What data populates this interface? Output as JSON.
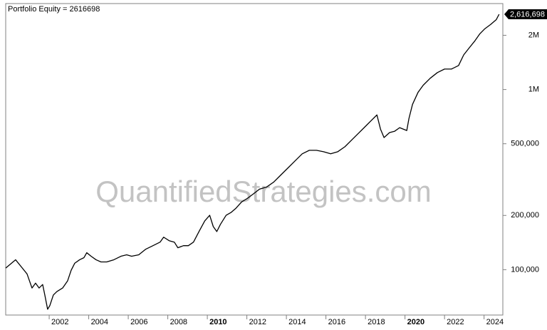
{
  "chart_data": {
    "type": "line",
    "title": "Portfolio Equity = 2616698",
    "watermark": "QuantifiedStrategies.com",
    "log_scale": true,
    "x": [
      1999.8,
      2000.3,
      2000.59,
      2000.88,
      2001.13,
      2001.31,
      2001.49,
      2001.67,
      2001.78,
      2001.92,
      2002.03,
      2002.21,
      2002.39,
      2002.68,
      2002.93,
      2003.11,
      2003.29,
      2003.54,
      2003.76,
      2003.9,
      2004.12,
      2004.37,
      2004.62,
      2004.91,
      2005.27,
      2005.63,
      2005.92,
      2006.17,
      2006.53,
      2006.89,
      2007.25,
      2007.61,
      2007.79,
      2008.07,
      2008.33,
      2008.51,
      2008.79,
      2009.04,
      2009.3,
      2009.58,
      2009.87,
      2010.12,
      2010.3,
      2010.48,
      2010.66,
      2010.95,
      2011.2,
      2011.45,
      2011.74,
      2012.03,
      2012.32,
      2012.64,
      2013.0,
      2013.36,
      2013.72,
      2014.08,
      2014.44,
      2014.8,
      2015.16,
      2015.52,
      2015.88,
      2016.24,
      2016.6,
      2016.96,
      2017.32,
      2017.68,
      2018.04,
      2018.29,
      2018.58,
      2018.76,
      2018.94,
      2019.22,
      2019.48,
      2019.73,
      2019.91,
      2020.09,
      2020.2,
      2020.38,
      2020.66,
      2020.92,
      2021.28,
      2021.64,
      2022.0,
      2022.35,
      2022.71,
      2022.97,
      2023.25,
      2023.54,
      2023.79,
      2024.04,
      2024.33,
      2024.62,
      2024.76
    ],
    "series": [
      {
        "color": "#000000",
        "values": [
          102000,
          113500,
          103700,
          94700,
          79100,
          84200,
          79100,
          82700,
          72300,
          60300,
          63100,
          72300,
          75600,
          79100,
          86600,
          99100,
          108500,
          113500,
          116600,
          124200,
          118700,
          113500,
          110400,
          110400,
          113500,
          118700,
          120900,
          118700,
          120900,
          130000,
          135900,
          142200,
          151500,
          144800,
          142200,
          132300,
          135900,
          135900,
          142200,
          162800,
          186500,
          200400,
          173500,
          162800,
          178200,
          200400,
          207800,
          219400,
          237900,
          248900,
          262800,
          280000,
          287700,
          306400,
          335400,
          367000,
          401800,
          439700,
          459900,
          459900,
          451700,
          439700,
          451700,
          481300,
          526800,
          576600,
          631000,
          672200,
          722700,
          603200,
          541200,
          576600,
          586900,
          614100,
          603200,
          592200,
          690600,
          827200,
          964500,
          1056000,
          1156000,
          1242000,
          1299000,
          1299000,
          1359000,
          1557000,
          1704000,
          1865000,
          2041000,
          2174000,
          2296000,
          2445000,
          2616698
        ],
        "value_labels": [
          null,
          null,
          null,
          null,
          null,
          null,
          null,
          null,
          null,
          null,
          null,
          null,
          null,
          null,
          null,
          null,
          null,
          null,
          null,
          null,
          null,
          null,
          null,
          null,
          null,
          null,
          null,
          null,
          null,
          null,
          null,
          null,
          null,
          null,
          null,
          null,
          null,
          null,
          null,
          null,
          null,
          null,
          null,
          null,
          null,
          null,
          null,
          null,
          null,
          null,
          null,
          null,
          null,
          null,
          null,
          null,
          null,
          null,
          null,
          null,
          null,
          null,
          null,
          null,
          null,
          null,
          null,
          null,
          null,
          null,
          null,
          null,
          null,
          null,
          null,
          null,
          null,
          null,
          null,
          null,
          null,
          null,
          null,
          null,
          null,
          null,
          null,
          null,
          null,
          null,
          null,
          null,
          "2,616,698"
        ]
      }
    ],
    "xlim": [
      1999.8,
      2024.95
    ],
    "xticks": [
      2002,
      2004,
      2006,
      2008,
      2010,
      2012,
      2014,
      2016,
      2018,
      2020,
      2022,
      2024
    ],
    "ylim": [
      56000,
      3000000
    ],
    "yticks": [
      {
        "value": 100000,
        "label": "100,000"
      },
      {
        "value": 200000,
        "label": "200,000"
      },
      {
        "value": 500000,
        "label": "500,000"
      },
      {
        "value": 1000000,
        "label": "1M"
      },
      {
        "value": 2000000,
        "label": "2M"
      }
    ]
  }
}
